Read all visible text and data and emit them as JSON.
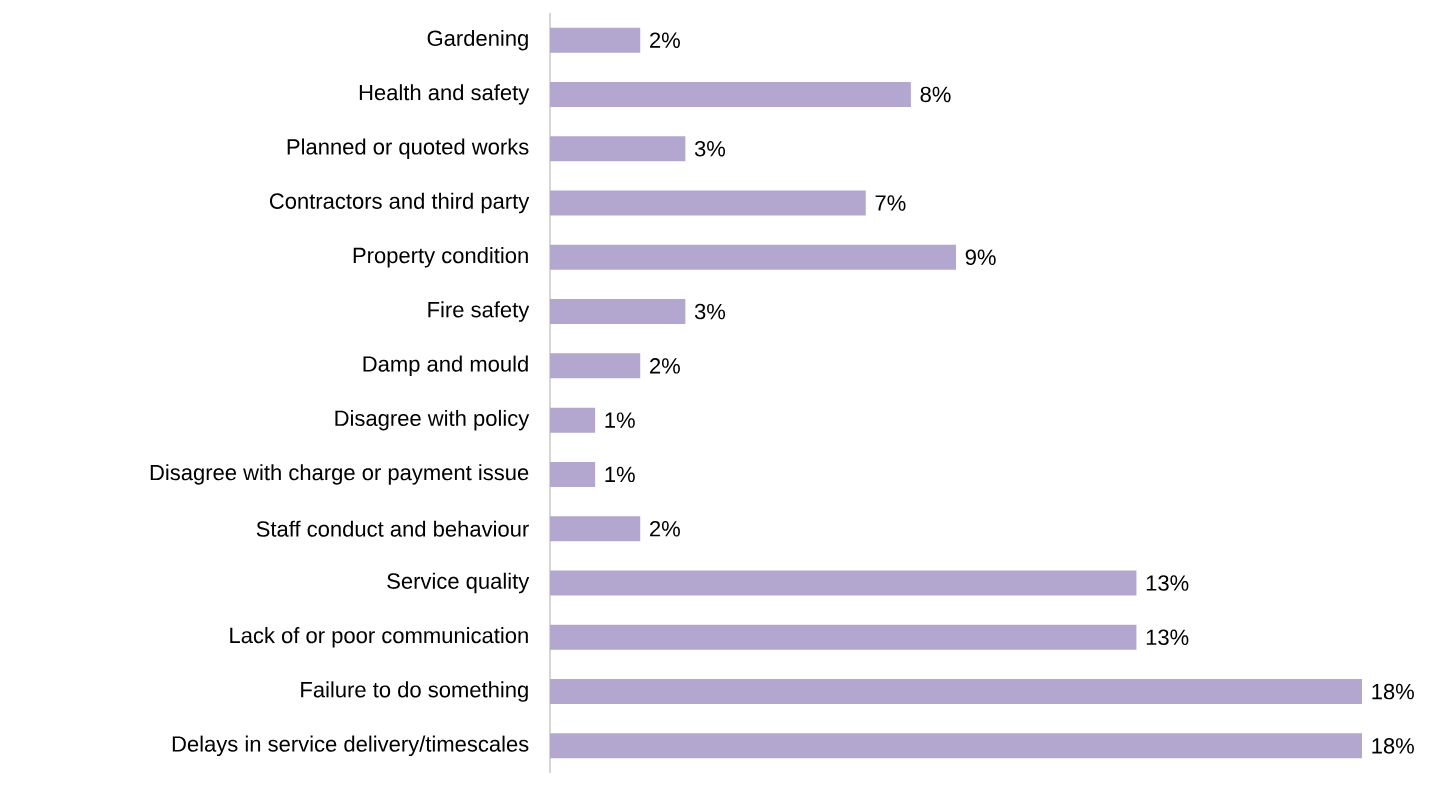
{
  "chart_data": {
    "type": "bar",
    "orientation": "horizontal",
    "categories": [
      "Gardening",
      "Health and safety",
      "Planned or quoted works",
      "Contractors and third party",
      "Property condition",
      "Fire safety",
      "Damp and mould",
      "Disagree with policy",
      "Disagree with charge or payment issue",
      "Staff conduct and behaviour",
      "Service quality",
      "Lack of or poor communication",
      "Failure to do something",
      "Delays in service delivery/timescales"
    ],
    "values": [
      2,
      8,
      3,
      7,
      9,
      3,
      2,
      1,
      1,
      2,
      13,
      13,
      18,
      18
    ],
    "value_labels": [
      "2%",
      "8%",
      "3%",
      "7%",
      "9%",
      "3%",
      "2%",
      "1%",
      "1%",
      "2%",
      "13%",
      "13%",
      "18%",
      "18%"
    ],
    "color": "#b3a7cf"
  }
}
